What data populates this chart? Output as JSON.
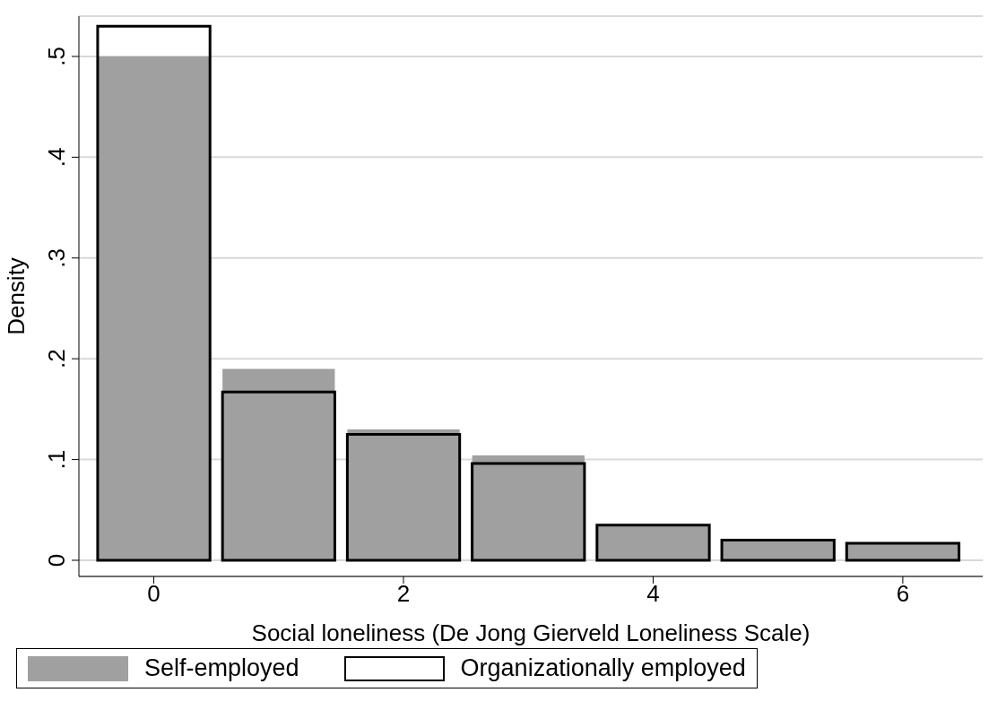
{
  "chart_data": {
    "type": "histogram",
    "xlabel": "Social loneliness (De Jong Gierveld Loneliness Scale)",
    "ylabel": "Density",
    "bins": [
      -0.5,
      0.5,
      1.5,
      2.5,
      3.5,
      4.5,
      5.5,
      6.5
    ],
    "series": [
      {
        "name": "Self-employed",
        "color": "#a0a0a0",
        "values": [
          0.5,
          0.19,
          0.13,
          0.104,
          0.034,
          0.019,
          0.016
        ]
      },
      {
        "name": "Organizationally employed",
        "color": "#000000",
        "values": [
          0.53,
          0.167,
          0.125,
          0.096,
          0.035,
          0.02,
          0.017
        ]
      }
    ],
    "xlim": [
      -0.6,
      6.64
    ],
    "xticks": [
      0,
      2,
      4,
      6
    ],
    "ylim": [
      -0.016,
      0.54
    ],
    "yticks": [
      0,
      {
        "value": 0.1,
        "label": ".1"
      },
      {
        "value": 0.2,
        "label": ".2"
      },
      {
        "value": 0.3,
        "label": ".3"
      },
      {
        "value": 0.4,
        "label": ".4"
      },
      {
        "value": 0.5,
        "label": ".5"
      }
    ],
    "grid": "y",
    "legend": "bottom"
  }
}
